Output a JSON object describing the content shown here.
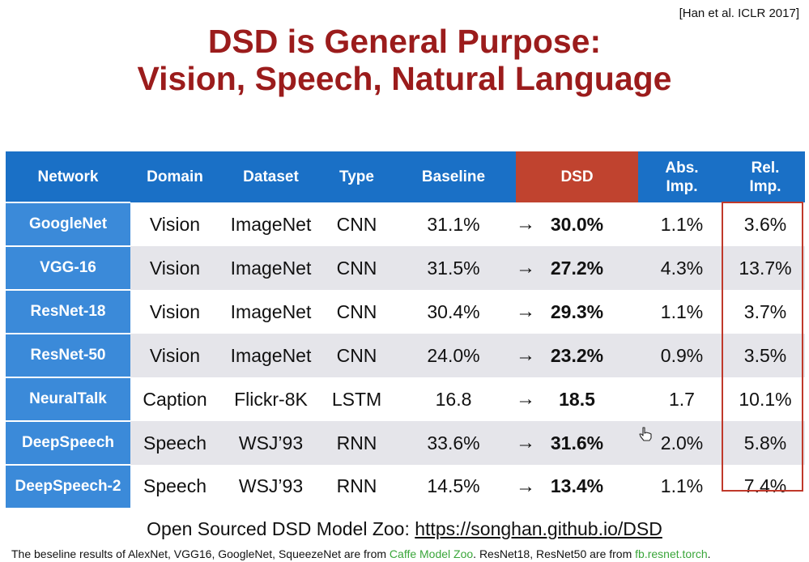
{
  "citation": "[Han et al. ICLR 2017]",
  "title": {
    "line1": "DSD is General Purpose:",
    "line2": "Vision, Speech, Natural Language"
  },
  "table": {
    "headers": {
      "network": "Network",
      "domain": "Domain",
      "dataset": "Dataset",
      "type": "Type",
      "baseline": "Baseline",
      "dsd": "DSD",
      "abs_imp_line1": "Abs.",
      "abs_imp_line2": "Imp.",
      "rel_imp_line1": "Rel.",
      "rel_imp_line2": "Imp."
    },
    "arrow": "→",
    "rows": [
      {
        "network": "GoogleNet",
        "domain": "Vision",
        "dataset": "ImageNet",
        "type": "CNN",
        "baseline": "31.1%",
        "dsd": "30.0%",
        "abs_imp": "1.1%",
        "rel_imp": "3.6%"
      },
      {
        "network": "VGG-16",
        "domain": "Vision",
        "dataset": "ImageNet",
        "type": "CNN",
        "baseline": "31.5%",
        "dsd": "27.2%",
        "abs_imp": "4.3%",
        "rel_imp": "13.7%"
      },
      {
        "network": "ResNet-18",
        "domain": "Vision",
        "dataset": "ImageNet",
        "type": "CNN",
        "baseline": "30.4%",
        "dsd": "29.3%",
        "abs_imp": "1.1%",
        "rel_imp": "3.7%"
      },
      {
        "network": "ResNet-50",
        "domain": "Vision",
        "dataset": "ImageNet",
        "type": "CNN",
        "baseline": "24.0%",
        "dsd": "23.2%",
        "abs_imp": "0.9%",
        "rel_imp": "3.5%"
      },
      {
        "network": "NeuralTalk",
        "domain": "Caption",
        "dataset": "Flickr-8K",
        "type": "LSTM",
        "baseline": "16.8",
        "dsd": "18.5",
        "abs_imp": "1.7",
        "rel_imp": "10.1%"
      },
      {
        "network": "DeepSpeech",
        "domain": "Speech",
        "dataset": "WSJ’93",
        "type": "RNN",
        "baseline": "33.6%",
        "dsd": "31.6%",
        "abs_imp": "2.0%",
        "rel_imp": "5.8%"
      },
      {
        "network": "DeepSpeech-2",
        "domain": "Speech",
        "dataset": "WSJ’93",
        "type": "RNN",
        "baseline": "14.5%",
        "dsd": "13.4%",
        "abs_imp": "1.1%",
        "rel_imp": "7.4%"
      }
    ]
  },
  "model_zoo": {
    "prefix": "Open Sourced DSD Model Zoo: ",
    "link": "https://songhan.github.io/DSD"
  },
  "footnote": {
    "part1": "The beseline results of AlexNet, VGG16, GoogleNet, SqueezeNet are from ",
    "link1": "Caffe Model Zoo",
    "part2": ". ResNet18, ResNet50 are from ",
    "link2": "fb.resnet.torch",
    "part3": "."
  },
  "colors": {
    "title": "#9b1c1c",
    "header_blue": "#1a70c6",
    "header_dsd": "#c0432f",
    "network_cell": "#3b8ad9",
    "row_stripe": "#e5e5ea",
    "rel_box": "#c0392b",
    "link_green": "#3aa63a"
  },
  "icons": {
    "cursor": "hand-pointer-icon"
  }
}
